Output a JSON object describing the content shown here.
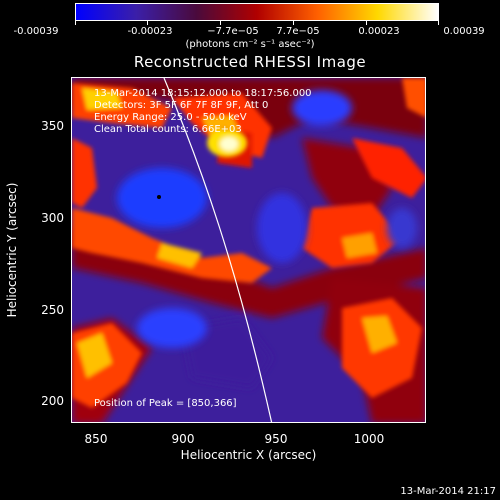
{
  "colorbar": {
    "tick_labels": [
      "-0.00039",
      "-0.00023",
      "−7.7e−05",
      "7.7e−05",
      "0.00023",
      "0.00039"
    ],
    "units": "(photons cm⁻² s⁻¹ asec⁻²)",
    "colors": [
      "#0000ff",
      "#3b1fa8",
      "#4a0a3c",
      "#b00000",
      "#ff6000",
      "#ffd800",
      "#ffffff"
    ]
  },
  "image": {
    "title": "Reconstructed RHESSI Image",
    "annotation_lines": [
      "13-Mar-2014 18:15:12.000 to 18:17:56.000",
      "Detectors: 3F 5F 6F 7F 8F 9F, Att 0",
      "Energy Range: 25.0 - 50.0 keV",
      "Clean      Total counts: 6.66E+03"
    ],
    "peak_label": "Position of Peak = [850,366]",
    "x_axis": {
      "label": "Heliocentric X (arcsec)",
      "ticks": [
        "850",
        "900",
        "950",
        "1000"
      ],
      "range": [
        840,
        1030
      ]
    },
    "y_axis": {
      "label": "Heliocentric Y (arcsec)",
      "ticks": [
        "200",
        "250",
        "300",
        "350"
      ],
      "range": [
        185,
        380
      ]
    }
  },
  "footer": {
    "timestamp": "13-Mar-2014 21:17"
  }
}
